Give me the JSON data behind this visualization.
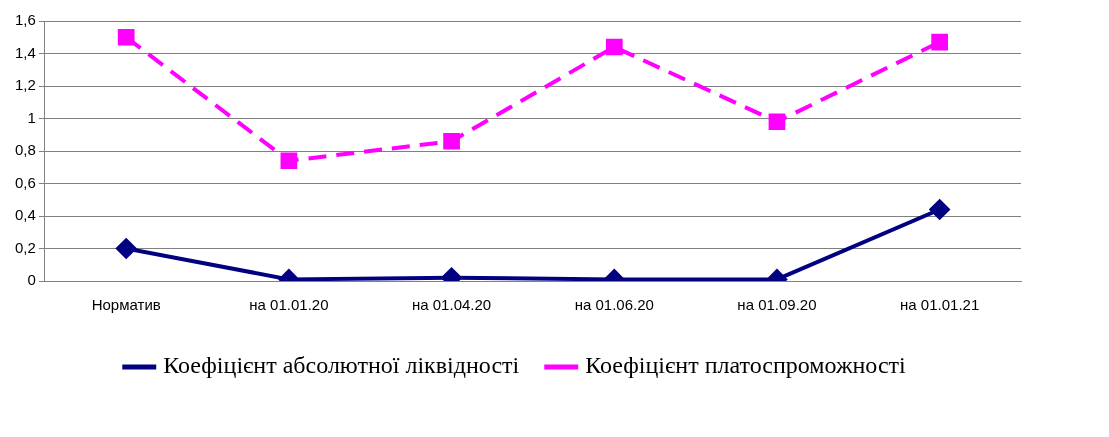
{
  "chart_data": {
    "type": "line",
    "categories": [
      "Норматив",
      "на 01.01.20",
      "на 01.04.20",
      "на 01.06.20",
      "на 01.09.20",
      "на 01.01.21"
    ],
    "series": [
      {
        "name": "Коефіцієнт абсолютної ліквідності",
        "color": "#000080",
        "values": [
          0.2,
          0.01,
          0.02,
          0.01,
          0.01,
          0.44
        ],
        "marker": "diamond",
        "line_style": "solid"
      },
      {
        "name": "Коефіцієнт платоспроможності",
        "color": "#ff00ff",
        "values": [
          1.5,
          0.74,
          0.86,
          1.44,
          0.98,
          1.47
        ],
        "marker": "square",
        "line_style": "dashed"
      }
    ],
    "ylim": [
      0,
      1.6
    ],
    "yticks": [
      0,
      {
        "value": 0.2,
        "label": "0,2"
      },
      {
        "value": 0.4,
        "label": "0,4"
      },
      {
        "value": 0.6,
        "label": "0,6"
      },
      {
        "value": 0.8,
        "label": "0,8"
      },
      1,
      {
        "value": 1.2,
        "label": "1,2"
      },
      {
        "value": 1.4,
        "label": "1,4"
      },
      {
        "value": 1.6,
        "label": "1,6"
      }
    ],
    "grid": "y",
    "legend": "bottom"
  }
}
